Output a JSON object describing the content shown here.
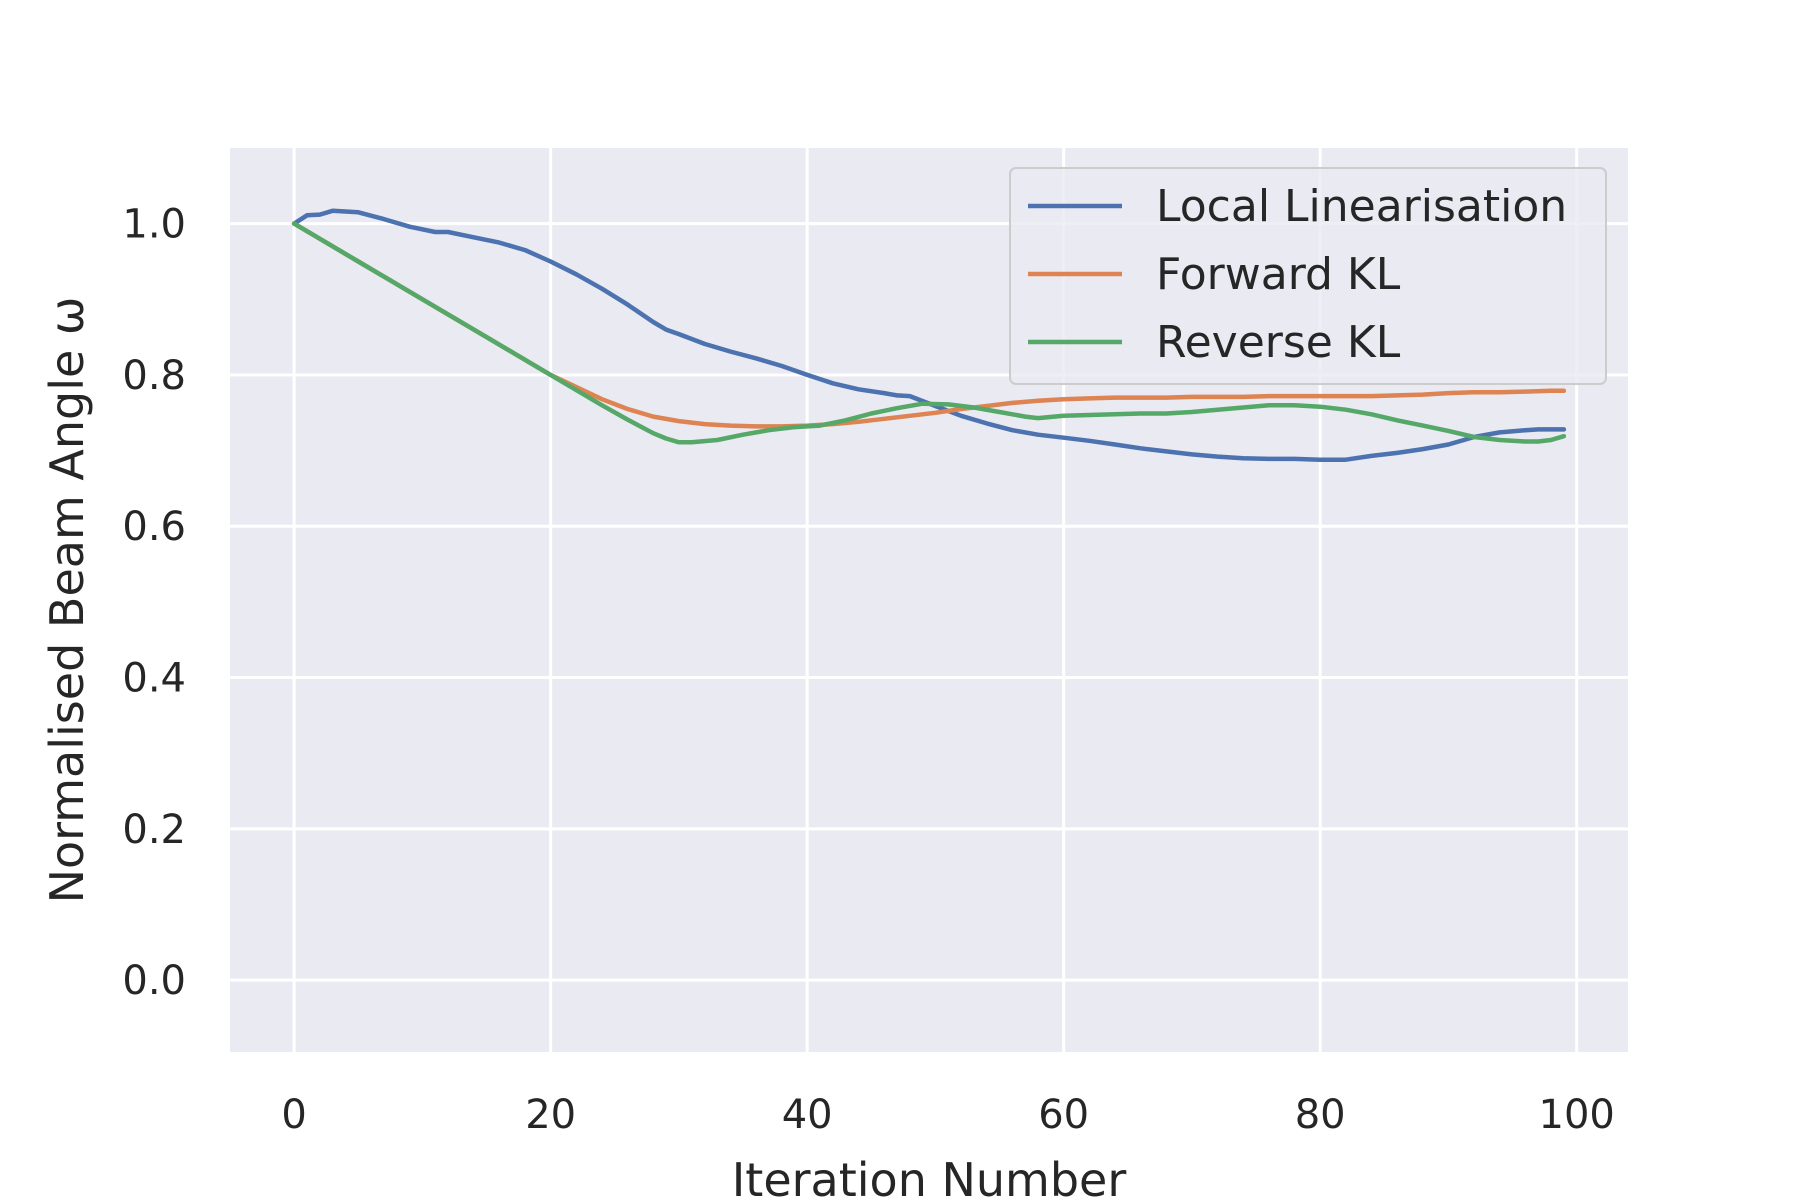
{
  "chart_data": {
    "type": "line",
    "title": "",
    "xlabel": "Iteration Number",
    "ylabel": "Normalised Beam Angle ω",
    "xlim": [
      -5,
      104
    ],
    "ylim": [
      -0.095,
      1.1
    ],
    "xticks": [
      0,
      20,
      40,
      60,
      80,
      100
    ],
    "yticks": [
      0.0,
      0.2,
      0.4,
      0.6,
      0.8,
      1.0
    ],
    "xtick_labels": [
      "0",
      "20",
      "40",
      "60",
      "80",
      "100"
    ],
    "ytick_labels": [
      "0.0",
      "0.2",
      "0.4",
      "0.6",
      "0.8",
      "1.0"
    ],
    "grid": true,
    "legend_position": "top-right",
    "background": "#eaeaf2",
    "series": [
      {
        "name": "Local Linearisation",
        "color": "#4c72b0",
        "x": [
          0,
          1,
          2,
          3,
          5,
          7,
          9,
          11,
          12,
          14,
          16,
          18,
          20,
          22,
          24,
          26,
          28,
          29,
          30,
          32,
          34,
          36,
          38,
          40,
          42,
          44,
          46,
          47,
          48,
          50,
          52,
          54,
          56,
          58,
          60,
          62,
          64,
          66,
          68,
          70,
          72,
          74,
          76,
          78,
          80,
          82,
          84,
          86,
          88,
          90,
          92,
          94,
          96,
          97,
          98,
          99
        ],
        "y": [
          1.0,
          1.011,
          1.012,
          1.017,
          1.015,
          1.006,
          0.996,
          0.989,
          0.989,
          0.982,
          0.975,
          0.965,
          0.95,
          0.933,
          0.914,
          0.893,
          0.87,
          0.86,
          0.854,
          0.841,
          0.831,
          0.822,
          0.812,
          0.8,
          0.789,
          0.781,
          0.776,
          0.773,
          0.772,
          0.759,
          0.746,
          0.736,
          0.727,
          0.721,
          0.717,
          0.713,
          0.708,
          0.703,
          0.699,
          0.695,
          0.692,
          0.69,
          0.689,
          0.689,
          0.688,
          0.688,
          0.693,
          0.697,
          0.702,
          0.708,
          0.718,
          0.724,
          0.727,
          0.728,
          0.728,
          0.728
        ]
      },
      {
        "name": "Forward KL",
        "color": "#dd8452",
        "x": [
          0,
          5,
          10,
          15,
          20,
          22,
          24,
          26,
          28,
          30,
          32,
          34,
          36,
          38,
          40,
          42,
          44,
          46,
          48,
          50,
          52,
          54,
          56,
          58,
          60,
          62,
          64,
          66,
          68,
          70,
          72,
          74,
          76,
          78,
          80,
          82,
          84,
          86,
          88,
          90,
          92,
          94,
          96,
          98,
          99
        ],
        "y": [
          1.0,
          0.95,
          0.9,
          0.85,
          0.8,
          0.784,
          0.768,
          0.755,
          0.745,
          0.739,
          0.735,
          0.733,
          0.732,
          0.732,
          0.733,
          0.735,
          0.738,
          0.742,
          0.746,
          0.75,
          0.755,
          0.759,
          0.763,
          0.766,
          0.768,
          0.769,
          0.77,
          0.77,
          0.77,
          0.771,
          0.771,
          0.771,
          0.772,
          0.772,
          0.772,
          0.772,
          0.772,
          0.773,
          0.774,
          0.776,
          0.777,
          0.777,
          0.778,
          0.779,
          0.779
        ]
      },
      {
        "name": "Reverse KL",
        "color": "#55a868",
        "x": [
          0,
          5,
          10,
          15,
          20,
          22,
          24,
          26,
          28,
          29,
          30,
          31,
          33,
          35,
          37,
          39,
          41,
          43,
          45,
          47,
          49,
          51,
          53,
          55,
          57,
          58,
          60,
          62,
          64,
          66,
          68,
          70,
          72,
          74,
          76,
          78,
          80,
          82,
          84,
          86,
          88,
          90,
          92,
          94,
          96,
          97,
          98,
          99
        ],
        "y": [
          1.0,
          0.95,
          0.9,
          0.85,
          0.8,
          0.78,
          0.76,
          0.741,
          0.723,
          0.716,
          0.711,
          0.711,
          0.714,
          0.721,
          0.727,
          0.731,
          0.733,
          0.74,
          0.749,
          0.756,
          0.762,
          0.761,
          0.757,
          0.751,
          0.745,
          0.743,
          0.746,
          0.747,
          0.748,
          0.749,
          0.749,
          0.751,
          0.754,
          0.757,
          0.76,
          0.76,
          0.758,
          0.754,
          0.748,
          0.74,
          0.733,
          0.726,
          0.718,
          0.714,
          0.712,
          0.712,
          0.714,
          0.719
        ]
      }
    ]
  }
}
